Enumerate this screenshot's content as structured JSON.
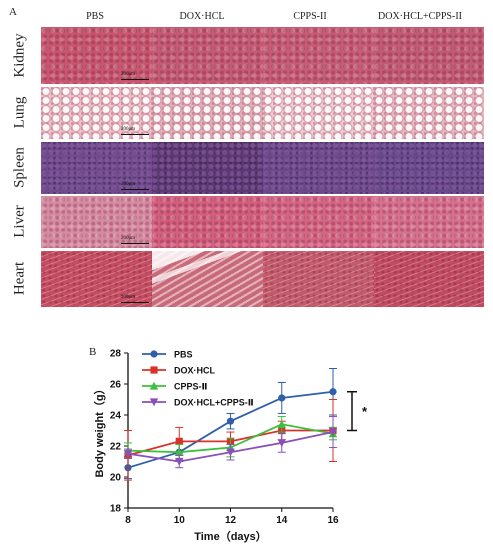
{
  "figure": {
    "panel_a_letter": "A",
    "panel_b_letter": "B",
    "columns": [
      "PBS",
      "DOX·HCL",
      "CPPS-II",
      "DOX·HCL+CPPS-II"
    ],
    "rows": [
      {
        "label": "Kidney",
        "tones": [
          "#c9566e",
          "#c65a72",
          "#c85c74",
          "#c45a72"
        ]
      },
      {
        "label": "Lung",
        "tones": [
          "#e8c4cc",
          "#dcb3bd",
          "#ead0d6",
          "#e2bcc5"
        ]
      },
      {
        "label": "Spleen",
        "tones": [
          "#6e4c8a",
          "#5a3a6e",
          "#6a4a86",
          "#664a88"
        ]
      },
      {
        "label": "Liver",
        "tones": [
          "#d88aa0",
          "#d45e7c",
          "#d66582",
          "#d8708c"
        ]
      },
      {
        "label": "Heart",
        "tones": [
          "#c64c62",
          "#c86a7a",
          "#c45a6c",
          "#c24a60"
        ]
      }
    ],
    "scale_bar_label": "200μm"
  },
  "chart_data": {
    "type": "line",
    "xlabel": "Time（days）",
    "ylabel": "Body weight（g）",
    "x": [
      8,
      10,
      12,
      14,
      16
    ],
    "xlim": [
      8,
      16
    ],
    "ylim": [
      18,
      28
    ],
    "xticks": [
      8,
      10,
      12,
      14,
      16
    ],
    "yticks": [
      18,
      20,
      22,
      24,
      26,
      28
    ],
    "grid": false,
    "legend_position": "top-left",
    "significance_label": "*",
    "series": [
      {
        "name": "PBS",
        "color": "#2f5fa8",
        "marker": "circle",
        "values": [
          20.6,
          21.6,
          23.6,
          25.1,
          25.5
        ],
        "errors": [
          0.7,
          0.6,
          0.5,
          1.0,
          1.5
        ]
      },
      {
        "name": "DOX·HCL",
        "color": "#d8322b",
        "marker": "square",
        "values": [
          21.4,
          22.3,
          22.3,
          23.0,
          23.0
        ],
        "errors": [
          1.6,
          0.9,
          0.6,
          0.6,
          2.0
        ]
      },
      {
        "name": "CPPS-Ⅱ",
        "color": "#3cbf3c",
        "marker": "triangle",
        "values": [
          21.7,
          21.6,
          21.9,
          23.4,
          22.8
        ],
        "errors": [
          0.5,
          0.5,
          0.6,
          0.5,
          0.4
        ]
      },
      {
        "name": "DOX·HCL+CPPS-Ⅱ",
        "color": "#8a4fb8",
        "marker": "triangle-down",
        "values": [
          21.5,
          21.0,
          21.6,
          22.2,
          22.9
        ],
        "errors": [
          0.3,
          0.4,
          0.5,
          0.6,
          1.0
        ]
      }
    ]
  }
}
